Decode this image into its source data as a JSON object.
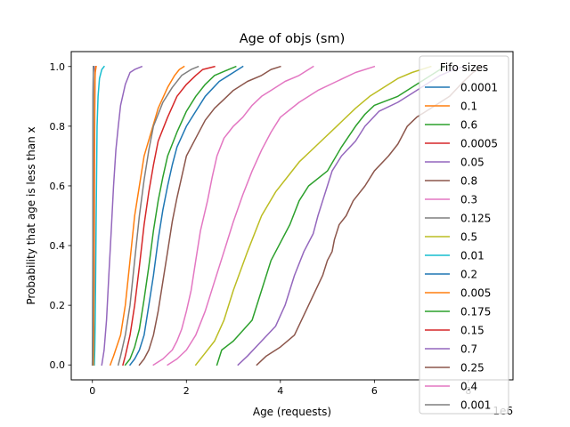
{
  "chart_data": {
    "type": "line",
    "title": "Age of objs (sm)",
    "xlabel": "Age (requests)",
    "ylabel": "Probability that age is less than x",
    "x_offset_label": "1e6",
    "xlim": [
      -0.45,
      8.95
    ],
    "ylim": [
      -0.05,
      1.05
    ],
    "x_ticks": [
      0,
      2,
      4,
      6,
      8
    ],
    "y_ticks": [
      0.0,
      0.2,
      0.4,
      0.6,
      0.8,
      1.0
    ],
    "x_tick_labels": [
      "0",
      "2",
      "4",
      "6",
      "8"
    ],
    "y_tick_labels": [
      "0.0",
      "0.2",
      "0.4",
      "0.6",
      "0.8",
      "1.0"
    ],
    "grid": false,
    "legend_title": "Fifo sizes",
    "legend_position": "right",
    "series": [
      {
        "name": "0.0001",
        "color": "#1f77b4",
        "x": [
          0.0,
          0.005,
          0.008,
          0.01,
          0.012,
          0.015,
          0.02,
          0.03
        ],
        "y": [
          0.0,
          0.1,
          0.3,
          0.5,
          0.7,
          0.9,
          0.98,
          1.0
        ]
      },
      {
        "name": "0.1",
        "color": "#ff7f0e",
        "x": [
          0.38,
          0.45,
          0.6,
          0.7,
          0.8,
          0.9,
          1.0,
          1.1,
          1.25,
          1.4,
          1.6,
          1.75,
          1.85,
          1.95
        ],
        "y": [
          0.0,
          0.03,
          0.1,
          0.2,
          0.35,
          0.5,
          0.6,
          0.7,
          0.78,
          0.86,
          0.93,
          0.97,
          0.99,
          1.0
        ]
      },
      {
        "name": "0.6",
        "color": "#2ca02c",
        "x": [
          2.65,
          2.75,
          3.0,
          3.4,
          3.6,
          3.8,
          4.2,
          4.4,
          4.6,
          5.0,
          5.3,
          5.6,
          5.8,
          6.0,
          6.5,
          7.2,
          7.5
        ],
        "y": [
          0.0,
          0.05,
          0.08,
          0.15,
          0.25,
          0.35,
          0.47,
          0.55,
          0.6,
          0.65,
          0.73,
          0.8,
          0.84,
          0.87,
          0.9,
          0.97,
          1.0
        ]
      },
      {
        "name": "0.0005",
        "color": "#d62728",
        "x": [
          0.02,
          0.025,
          0.03,
          0.035,
          0.04,
          0.045,
          0.05,
          0.055,
          0.06,
          0.07
        ],
        "y": [
          0.0,
          0.05,
          0.15,
          0.3,
          0.5,
          0.7,
          0.85,
          0.95,
          0.99,
          1.0
        ]
      },
      {
        "name": "0.05",
        "color": "#9467bd",
        "x": [
          0.2,
          0.25,
          0.3,
          0.35,
          0.4,
          0.45,
          0.5,
          0.55,
          0.6,
          0.7,
          0.8,
          0.9,
          1.05
        ],
        "y": [
          0.0,
          0.05,
          0.15,
          0.3,
          0.45,
          0.6,
          0.72,
          0.8,
          0.87,
          0.94,
          0.98,
          0.99,
          1.0
        ]
      },
      {
        "name": "0.8",
        "color": "#8c564b",
        "x": [
          3.5,
          3.7,
          4.0,
          4.3,
          4.6,
          4.9,
          5.0,
          5.1,
          5.15,
          5.25,
          5.4,
          5.55,
          5.8,
          6.0,
          6.3,
          6.5,
          6.7,
          6.9,
          7.2,
          7.6,
          7.9,
          8.1,
          8.3
        ],
        "y": [
          0.0,
          0.03,
          0.06,
          0.1,
          0.2,
          0.3,
          0.35,
          0.38,
          0.42,
          0.47,
          0.5,
          0.55,
          0.6,
          0.65,
          0.7,
          0.74,
          0.8,
          0.83,
          0.86,
          0.9,
          0.95,
          0.98,
          1.0
        ]
      },
      {
        "name": "0.3",
        "color": "#e377c2",
        "x": [
          1.3,
          1.5,
          1.7,
          1.8,
          1.9,
          2.0,
          2.1,
          2.2,
          2.3,
          2.45,
          2.55,
          2.65,
          2.8,
          3.0,
          3.2,
          3.4,
          3.6,
          3.8,
          4.1,
          4.4,
          4.7
        ],
        "y": [
          0.0,
          0.02,
          0.05,
          0.08,
          0.12,
          0.18,
          0.25,
          0.35,
          0.45,
          0.55,
          0.63,
          0.7,
          0.76,
          0.8,
          0.83,
          0.87,
          0.9,
          0.92,
          0.95,
          0.97,
          1.0
        ]
      },
      {
        "name": "0.125",
        "color": "#7f7f7f",
        "x": [
          0.55,
          0.6,
          0.7,
          0.8,
          0.9,
          1.0,
          1.1,
          1.2,
          1.3,
          1.5,
          1.7,
          1.9,
          2.1,
          2.25
        ],
        "y": [
          0.0,
          0.03,
          0.1,
          0.2,
          0.35,
          0.5,
          0.62,
          0.72,
          0.8,
          0.88,
          0.93,
          0.97,
          0.99,
          1.0
        ]
      },
      {
        "name": "0.5",
        "color": "#bcbd22",
        "x": [
          2.2,
          2.4,
          2.6,
          2.8,
          3.0,
          3.3,
          3.6,
          3.9,
          4.2,
          4.4,
          4.8,
          5.2,
          5.6,
          5.9,
          6.2,
          6.5,
          6.8,
          7.2
        ],
        "y": [
          0.0,
          0.04,
          0.08,
          0.15,
          0.25,
          0.38,
          0.5,
          0.58,
          0.64,
          0.68,
          0.74,
          0.8,
          0.86,
          0.9,
          0.93,
          0.96,
          0.98,
          1.0
        ]
      },
      {
        "name": "0.01",
        "color": "#17becf",
        "x": [
          0.04,
          0.05,
          0.06,
          0.07,
          0.08,
          0.09,
          0.1,
          0.12,
          0.15,
          0.2,
          0.25
        ],
        "y": [
          0.0,
          0.05,
          0.15,
          0.3,
          0.5,
          0.65,
          0.8,
          0.9,
          0.96,
          0.99,
          1.0
        ]
      },
      {
        "name": "0.2",
        "color": "#1f77b4",
        "x": [
          0.8,
          0.9,
          1.0,
          1.1,
          1.2,
          1.3,
          1.4,
          1.5,
          1.6,
          1.7,
          1.8,
          2.0,
          2.2,
          2.4,
          2.7,
          3.0,
          3.2
        ],
        "y": [
          0.0,
          0.02,
          0.05,
          0.1,
          0.2,
          0.3,
          0.42,
          0.52,
          0.6,
          0.67,
          0.73,
          0.8,
          0.85,
          0.9,
          0.95,
          0.98,
          1.0
        ]
      },
      {
        "name": "0.005",
        "color": "#ff7f0e",
        "x": [
          0.02,
          0.025,
          0.03,
          0.035,
          0.04,
          0.05,
          0.06,
          0.08
        ],
        "y": [
          0.0,
          0.1,
          0.3,
          0.5,
          0.7,
          0.9,
          0.98,
          1.0
        ]
      },
      {
        "name": "0.175",
        "color": "#2ca02c",
        "x": [
          0.7,
          0.8,
          0.9,
          1.0,
          1.1,
          1.2,
          1.3,
          1.4,
          1.5,
          1.6,
          1.8,
          2.0,
          2.2,
          2.4,
          2.6,
          2.9,
          3.05
        ],
        "y": [
          0.0,
          0.02,
          0.06,
          0.12,
          0.22,
          0.33,
          0.45,
          0.55,
          0.63,
          0.7,
          0.78,
          0.85,
          0.9,
          0.94,
          0.97,
          0.99,
          1.0
        ]
      },
      {
        "name": "0.15",
        "color": "#d62728",
        "x": [
          0.65,
          0.7,
          0.8,
          0.9,
          1.0,
          1.1,
          1.2,
          1.3,
          1.4,
          1.6,
          1.8,
          2.0,
          2.2,
          2.35,
          2.6
        ],
        "y": [
          0.0,
          0.03,
          0.1,
          0.2,
          0.33,
          0.47,
          0.58,
          0.67,
          0.75,
          0.83,
          0.9,
          0.94,
          0.97,
          0.99,
          1.0
        ]
      },
      {
        "name": "0.7",
        "color": "#9467bd",
        "x": [
          3.1,
          3.3,
          3.6,
          3.9,
          4.1,
          4.3,
          4.5,
          4.7,
          4.8,
          4.9,
          5.0,
          5.1,
          5.3,
          5.6,
          5.8,
          6.1,
          6.5,
          6.8,
          7.1,
          7.4,
          7.7,
          7.9
        ],
        "y": [
          0.0,
          0.03,
          0.08,
          0.13,
          0.2,
          0.3,
          0.38,
          0.44,
          0.5,
          0.55,
          0.6,
          0.65,
          0.7,
          0.75,
          0.8,
          0.85,
          0.88,
          0.91,
          0.94,
          0.97,
          0.99,
          1.0
        ]
      },
      {
        "name": "0.25",
        "color": "#8c564b",
        "x": [
          1.0,
          1.1,
          1.2,
          1.3,
          1.4,
          1.5,
          1.6,
          1.7,
          1.8,
          1.9,
          2.0,
          2.2,
          2.4,
          2.6,
          2.8,
          3.0,
          3.3,
          3.6,
          3.8,
          4.0
        ],
        "y": [
          0.0,
          0.02,
          0.05,
          0.1,
          0.18,
          0.28,
          0.38,
          0.48,
          0.56,
          0.63,
          0.7,
          0.76,
          0.82,
          0.86,
          0.89,
          0.92,
          0.95,
          0.97,
          0.99,
          1.0
        ]
      },
      {
        "name": "0.4",
        "color": "#e377c2",
        "x": [
          1.6,
          1.8,
          2.0,
          2.2,
          2.4,
          2.6,
          2.8,
          3.0,
          3.2,
          3.4,
          3.6,
          3.8,
          4.0,
          4.4,
          4.8,
          5.2,
          5.6,
          6.0
        ],
        "y": [
          0.0,
          0.02,
          0.05,
          0.1,
          0.18,
          0.28,
          0.38,
          0.48,
          0.57,
          0.65,
          0.72,
          0.78,
          0.83,
          0.88,
          0.92,
          0.95,
          0.98,
          1.0
        ]
      },
      {
        "name": "0.001",
        "color": "#7f7f7f",
        "x": [
          0.0,
          0.005,
          0.008,
          0.01,
          0.012,
          0.015,
          0.02
        ],
        "y": [
          0.0,
          0.1,
          0.3,
          0.5,
          0.7,
          0.9,
          1.0
        ]
      }
    ]
  }
}
